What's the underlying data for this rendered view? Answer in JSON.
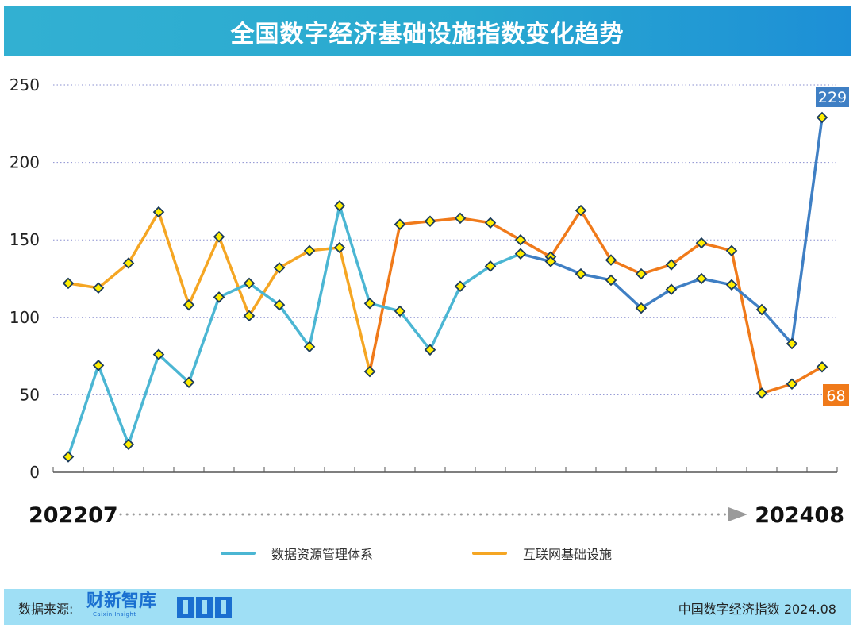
{
  "title": "全国数字经济基础设施指数变化趋势",
  "period": {
    "start": "202207",
    "end": "202408"
  },
  "footer": {
    "source_label": "数据来源:",
    "brand": "财新智库",
    "brand_sub": "Caixin Insight",
    "publication": "中国数字经济指数 2024.08"
  },
  "legend": {
    "series1": "数据资源管理体系",
    "series2": "互联网基础设施"
  },
  "colors": {
    "series1": "#4bb6d3",
    "series2": "#f5a623",
    "series1_end": "#3f7fc4",
    "series2_end": "#f07a1a",
    "marker_fill": "#ffee00",
    "marker_stroke": "#1a3a5a"
  },
  "chart_data": {
    "type": "line",
    "title": "全国数字经济基础设施指数变化趋势",
    "x": [
      "202207",
      "202208",
      "202209",
      "202210",
      "202211",
      "202212",
      "202301",
      "202302",
      "202303",
      "202304",
      "202305",
      "202306",
      "202307",
      "202308",
      "202309",
      "202310",
      "202311",
      "202312",
      "202401",
      "202402",
      "202403",
      "202404",
      "202405",
      "202406",
      "202407",
      "202408"
    ],
    "ylim": [
      0,
      250
    ],
    "yticks": [
      "0",
      "50",
      "100",
      "150",
      "200",
      "250"
    ],
    "grid": true,
    "series": [
      {
        "name": "数据资源管理体系",
        "values": [
          10,
          69,
          18,
          76,
          58,
          113,
          122,
          108,
          81,
          172,
          109,
          104,
          79,
          120,
          133,
          141,
          136,
          128,
          124,
          106,
          118,
          125,
          121,
          105,
          83,
          229
        ],
        "end_label": "229"
      },
      {
        "name": "互联网基础设施",
        "values": [
          122,
          119,
          135,
          168,
          108,
          152,
          101,
          132,
          143,
          145,
          65,
          160,
          162,
          164,
          161,
          150,
          139,
          169,
          137,
          128,
          134,
          148,
          143,
          51,
          57,
          68
        ],
        "end_label": "68"
      }
    ]
  }
}
